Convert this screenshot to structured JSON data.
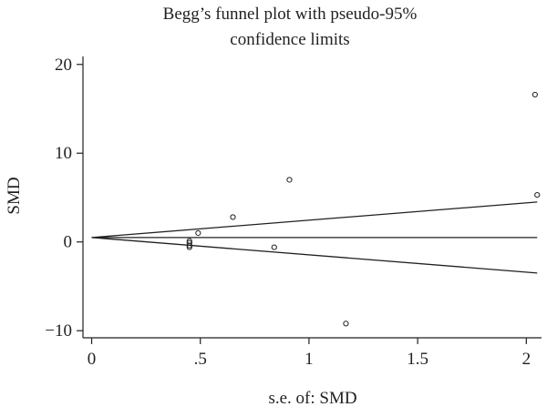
{
  "chart_data": {
    "type": "scatter",
    "title_lines": [
      "Begg’s funnel plot with pseudo-95%",
      "confidence limits"
    ],
    "xlabel": "s.e. of: SMD",
    "ylabel": "SMD",
    "xlim": [
      -0.04,
      2.07
    ],
    "ylim": [
      -10.8,
      20.9
    ],
    "x_ticks": [
      {
        "value": 0,
        "label": "0"
      },
      {
        "value": 0.5,
        "label": ".5"
      },
      {
        "value": 1,
        "label": "1"
      },
      {
        "value": 1.5,
        "label": "1.5"
      },
      {
        "value": 2,
        "label": "2"
      }
    ],
    "y_ticks": [
      {
        "value": -10,
        "label": "−10"
      },
      {
        "value": 0,
        "label": "0"
      },
      {
        "value": 10,
        "label": "10"
      },
      {
        "value": 20,
        "label": "20"
      }
    ],
    "points": [
      {
        "x": 0.45,
        "y": 0.1
      },
      {
        "x": 0.45,
        "y": -0.1
      },
      {
        "x": 0.45,
        "y": -0.4
      },
      {
        "x": 0.45,
        "y": -0.6
      },
      {
        "x": 0.49,
        "y": 1.0
      },
      {
        "x": 0.65,
        "y": 2.8
      },
      {
        "x": 0.84,
        "y": -0.6
      },
      {
        "x": 0.91,
        "y": 7.0
      },
      {
        "x": 1.17,
        "y": -9.2
      },
      {
        "x": 2.04,
        "y": 16.6
      },
      {
        "x": 2.05,
        "y": 5.3
      }
    ],
    "pooled_estimate": 0.5,
    "x_max": 2.05,
    "upper_limit_end": 4.5,
    "lower_limit_end": -3.5,
    "grid": false,
    "legend": "none"
  }
}
